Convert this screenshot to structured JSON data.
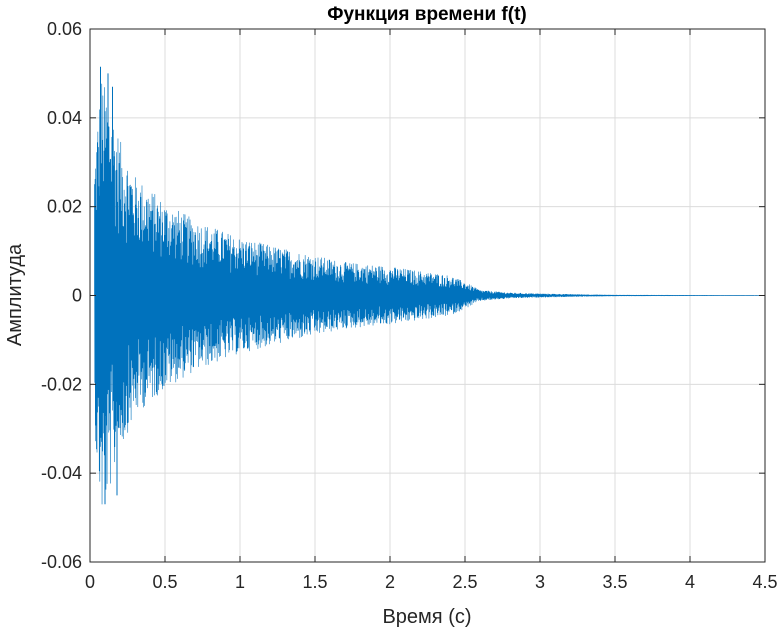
{
  "chart_data": {
    "type": "line",
    "title": "Функция времени f(t)",
    "xlabel": "Время (c)",
    "ylabel": "Амплитуда",
    "xlim": [
      0,
      4.5
    ],
    "ylim": [
      -0.06,
      0.06
    ],
    "xticks": [
      0,
      0.5,
      1,
      1.5,
      2,
      2.5,
      3,
      3.5,
      4,
      4.5
    ],
    "xtick_labels": [
      "0",
      "0.5",
      "1",
      "1.5",
      "2",
      "2.5",
      "3",
      "3.5",
      "4",
      "4.5"
    ],
    "yticks": [
      -0.06,
      -0.04,
      -0.02,
      0,
      0.02,
      0.04,
      0.06
    ],
    "ytick_labels": [
      "-0.06",
      "-0.04",
      "-0.02",
      "0",
      "0.02",
      "0.04",
      "0.06"
    ],
    "grid": true,
    "series": [
      {
        "name": "f(t)",
        "color": "#0072BD",
        "signal_start": 0.03,
        "signal_end": 4.5,
        "envelope": {
          "t": [
            0.03,
            0.05,
            0.08,
            0.1,
            0.15,
            0.2,
            0.25,
            0.3,
            0.4,
            0.5,
            0.7,
            1.0,
            1.3,
            1.5,
            1.7,
            2.0,
            2.2,
            2.4,
            2.5,
            2.6,
            2.8,
            3.0,
            3.3,
            3.5,
            4.5
          ],
          "amp": [
            0.03,
            0.04,
            0.05,
            0.047,
            0.042,
            0.035,
            0.031,
            0.027,
            0.024,
            0.021,
            0.017,
            0.013,
            0.0105,
            0.009,
            0.0075,
            0.0065,
            0.0055,
            0.0045,
            0.003,
            0.0012,
            0.0006,
            0.0004,
            0.0002,
            0.0001,
            0.0
          ]
        },
        "peaks": {
          "t": [
            0.07,
            0.1,
            0.12,
            0.15,
            0.18
          ],
          "amp": [
            0.0515,
            -0.047,
            0.05,
            0.047,
            -0.045
          ]
        }
      }
    ]
  }
}
